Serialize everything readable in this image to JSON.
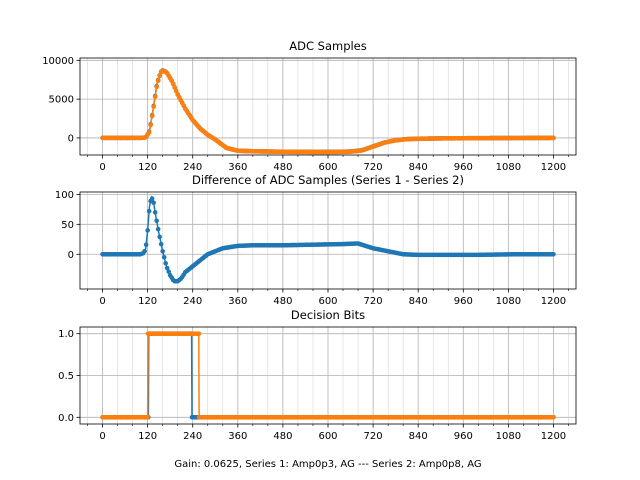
{
  "figure": {
    "footer_label": "Gain: 0.0625, Series 1: Amp0p3, AG --- Series 2: Amp0p8, AG"
  },
  "colors": {
    "series1": "#1f77b4",
    "series2": "#ff7f0e"
  },
  "chart_data": [
    {
      "type": "line",
      "title": "ADC Samples",
      "xlabel": "",
      "ylabel": "",
      "xlim": [
        -60,
        1260
      ],
      "ylim": [
        -2200,
        10300
      ],
      "xticks": [
        0,
        120,
        240,
        360,
        480,
        600,
        720,
        840,
        960,
        1080,
        1200
      ],
      "xticks_minor_step": 40,
      "yticks": [
        0,
        5000,
        10000
      ],
      "grid": true,
      "markers": true,
      "series": [
        {
          "color": "#1f77b4",
          "points": [
            [
              0,
              0
            ],
            [
              60,
              0
            ],
            [
              100,
              0
            ],
            [
              115,
              50
            ],
            [
              125,
              900
            ],
            [
              135,
              3800
            ],
            [
              145,
              7000
            ],
            [
              155,
              8500
            ],
            [
              160,
              8700
            ],
            [
              170,
              8500
            ],
            [
              185,
              7300
            ],
            [
              200,
              5600
            ],
            [
              220,
              3800
            ],
            [
              240,
              2300
            ],
            [
              260,
              1200
            ],
            [
              280,
              400
            ],
            [
              300,
              -200
            ],
            [
              330,
              -1300
            ],
            [
              360,
              -1650
            ],
            [
              400,
              -1720
            ],
            [
              480,
              -1780
            ],
            [
              560,
              -1800
            ],
            [
              620,
              -1800
            ],
            [
              660,
              -1750
            ],
            [
              690,
              -1600
            ],
            [
              720,
              -1100
            ],
            [
              750,
              -600
            ],
            [
              780,
              -300
            ],
            [
              810,
              -150
            ],
            [
              850,
              -100
            ],
            [
              900,
              -60
            ],
            [
              1000,
              -30
            ],
            [
              1100,
              -10
            ],
            [
              1200,
              0
            ]
          ]
        },
        {
          "color": "#ff7f0e",
          "points": [
            [
              0,
              0
            ],
            [
              60,
              0
            ],
            [
              100,
              0
            ],
            [
              115,
              40
            ],
            [
              125,
              800
            ],
            [
              135,
              3700
            ],
            [
              145,
              6900
            ],
            [
              155,
              8450
            ],
            [
              160,
              8650
            ],
            [
              170,
              8480
            ],
            [
              185,
              7300
            ],
            [
              200,
              5600
            ],
            [
              220,
              3800
            ],
            [
              240,
              2300
            ],
            [
              260,
              1200
            ],
            [
              280,
              400
            ],
            [
              300,
              -200
            ],
            [
              330,
              -1300
            ],
            [
              360,
              -1650
            ],
            [
              400,
              -1720
            ],
            [
              480,
              -1790
            ],
            [
              560,
              -1810
            ],
            [
              620,
              -1815
            ],
            [
              660,
              -1770
            ],
            [
              690,
              -1620
            ],
            [
              720,
              -1120
            ],
            [
              750,
              -610
            ],
            [
              780,
              -310
            ],
            [
              810,
              -160
            ],
            [
              850,
              -100
            ],
            [
              900,
              -60
            ],
            [
              1000,
              -30
            ],
            [
              1100,
              -10
            ],
            [
              1200,
              0
            ]
          ]
        }
      ]
    },
    {
      "type": "line",
      "title": "Difference of ADC Samples (Series 1 - Series 2)",
      "xlabel": "",
      "ylabel": "",
      "xlim": [
        -60,
        1260
      ],
      "ylim": [
        -58,
        104
      ],
      "xticks": [
        0,
        120,
        240,
        360,
        480,
        600,
        720,
        840,
        960,
        1080,
        1200
      ],
      "xticks_minor_step": 40,
      "yticks": [
        0,
        50,
        100
      ],
      "grid": true,
      "markers": true,
      "series": [
        {
          "color": "#1f77b4",
          "points": [
            [
              0,
              0
            ],
            [
              60,
              0
            ],
            [
              100,
              0
            ],
            [
              110,
              2
            ],
            [
              115,
              10
            ],
            [
              120,
              40
            ],
            [
              125,
              80
            ],
            [
              130,
              95
            ],
            [
              135,
              90
            ],
            [
              140,
              70
            ],
            [
              150,
              35
            ],
            [
              160,
              5
            ],
            [
              170,
              -20
            ],
            [
              180,
              -35
            ],
            [
              190,
              -45
            ],
            [
              200,
              -45
            ],
            [
              210,
              -40
            ],
            [
              220,
              -30
            ],
            [
              240,
              -20
            ],
            [
              260,
              -10
            ],
            [
              280,
              0
            ],
            [
              300,
              5
            ],
            [
              320,
              10
            ],
            [
              360,
              14
            ],
            [
              400,
              15
            ],
            [
              480,
              15
            ],
            [
              560,
              16
            ],
            [
              640,
              17
            ],
            [
              680,
              18
            ],
            [
              700,
              14
            ],
            [
              720,
              10
            ],
            [
              760,
              5
            ],
            [
              800,
              0
            ],
            [
              840,
              -1
            ],
            [
              900,
              -1
            ],
            [
              1000,
              -1
            ],
            [
              1100,
              0
            ],
            [
              1200,
              0
            ]
          ]
        }
      ]
    },
    {
      "type": "line",
      "title": "Decision Bits",
      "xlabel": "",
      "ylabel": "",
      "xlim": [
        -60,
        1260
      ],
      "ylim": [
        -0.08,
        1.08
      ],
      "xticks": [
        0,
        120,
        240,
        360,
        480,
        600,
        720,
        840,
        960,
        1080,
        1200
      ],
      "xticks_minor_step": 40,
      "yticks": [
        0.0,
        0.5,
        1.0
      ],
      "grid": true,
      "markers": true,
      "series": [
        {
          "color": "#1f77b4",
          "points": [
            [
              0,
              0
            ],
            [
              122,
              0
            ],
            [
              123,
              1
            ],
            [
              237,
              1
            ],
            [
              238,
              0
            ],
            [
              1200,
              0
            ]
          ]
        },
        {
          "color": "#ff7f0e",
          "points": [
            [
              0,
              0
            ],
            [
              120,
              0
            ],
            [
              121,
              1
            ],
            [
              256,
              1
            ],
            [
              257,
              0
            ],
            [
              1200,
              0
            ]
          ]
        }
      ]
    }
  ]
}
